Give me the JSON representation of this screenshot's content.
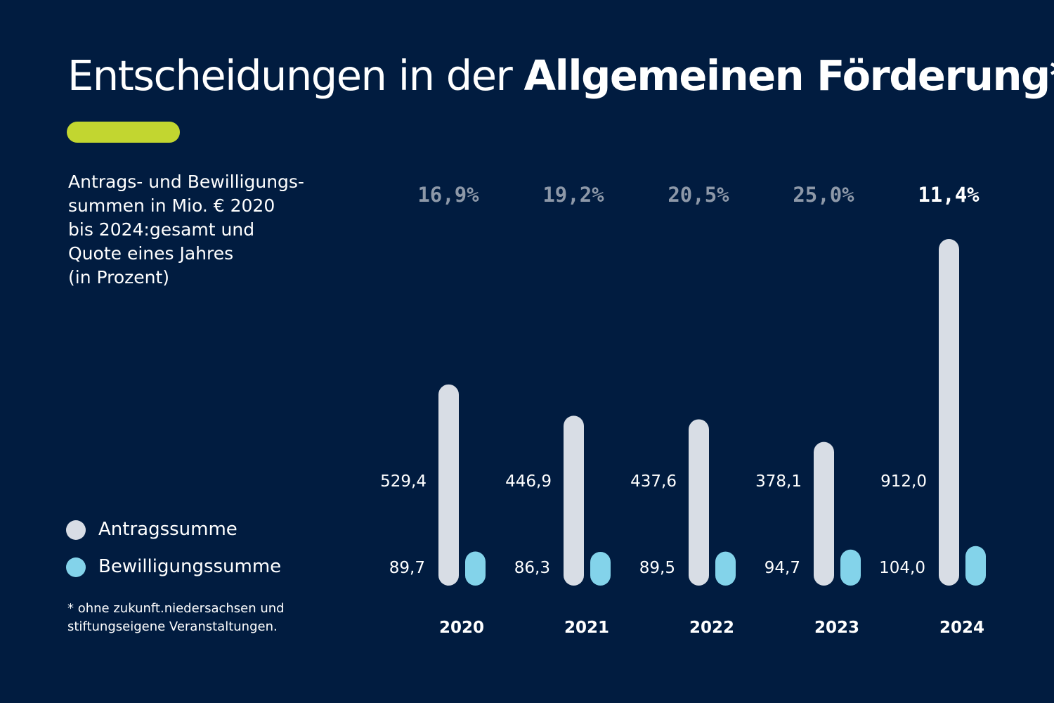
{
  "header": {
    "title_regular": "Entscheidungen in der",
    "title_bold": "Allgemeinen Förderung*",
    "accent_color": "#c2d630"
  },
  "subtitle": "Antrags- und Bewilligungs-\nsummen in Mio. € 2020\nbis 2024:gesamt und\nQuote eines Jahres\n(in Prozent)",
  "legend": {
    "items": [
      {
        "label": "Antragssumme",
        "color": "#d8dde5"
      },
      {
        "label": "Bewilligungssumme",
        "color": "#83d3ea"
      }
    ]
  },
  "footnote": "* ohne zukunft.niedersachsen und\n  stiftungseigene Veranstaltungen.",
  "colors": {
    "background": "#011c40",
    "antrag": "#d8dde5",
    "bewilligung": "#83d3ea",
    "pct_muted": "#8d98a8",
    "pct_highlight": "#ffffff"
  },
  "chart_data": {
    "type": "bar",
    "title": "Entscheidungen in der Allgemeinen Förderung*",
    "categories": [
      "2020",
      "2021",
      "2022",
      "2023",
      "2024"
    ],
    "series": [
      {
        "name": "Antragssumme",
        "values": [
          529.4,
          446.9,
          437.6,
          378.1,
          912.0
        ],
        "labels": [
          "529,4",
          "446,9",
          "437,6",
          "378,1",
          "912,0"
        ]
      },
      {
        "name": "Bewilligungssumme",
        "values": [
          89.7,
          86.3,
          89.5,
          94.7,
          104.0
        ],
        "labels": [
          "89,7",
          "86,3",
          "89,5",
          "94,7",
          "104,0"
        ]
      }
    ],
    "quota_labels": [
      "16,9%",
      "19,2%",
      "20,5%",
      "25,0%",
      "11,4%"
    ],
    "highlight_index": 4,
    "ylabel": "Mio. €",
    "ylim": [
      0,
      912.0
    ]
  }
}
